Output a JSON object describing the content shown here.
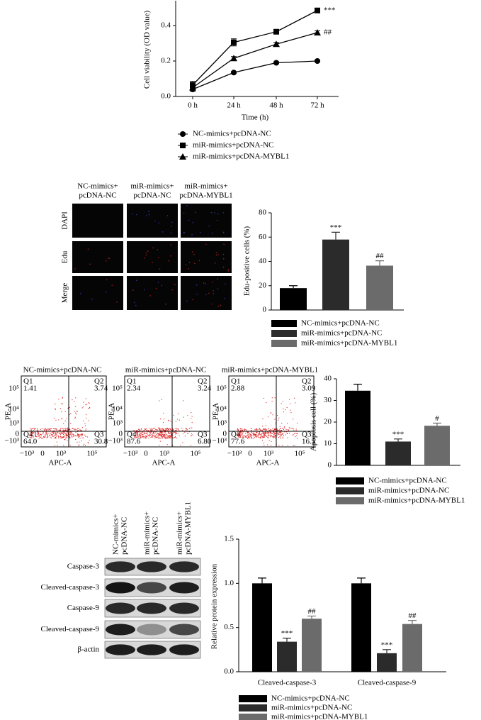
{
  "chart_data": [
    {
      "type": "line",
      "ylabel": "Cell viability (OD value)",
      "xlabel": "Time (h)",
      "categories": [
        "0 h",
        "24 h",
        "48 h",
        "72 h"
      ],
      "ylim": [
        0,
        0.54
      ],
      "yticks": [
        {
          "value": 0,
          "label": "0.0"
        },
        {
          "value": 0.2,
          "label": "0.2"
        },
        {
          "value": 0.4,
          "label": "0.4"
        }
      ],
      "series": [
        {
          "name": "NC-mimics+pcDNA-NC",
          "color": "#000000",
          "marker": "circle",
          "values": [
            0.04,
            0.135,
            0.19,
            0.2
          ],
          "errors": [
            0.01,
            0.005,
            0.005,
            0.005
          ]
        },
        {
          "name": "miR-mimics+pcDNA-NC",
          "color": "#000000",
          "marker": "square",
          "values": [
            0.065,
            0.305,
            0.365,
            0.485
          ],
          "errors": [
            0.02,
            0.02,
            0.01,
            0.01
          ],
          "annotation": "***"
        },
        {
          "name": "miR-mimics+pcDNA-MYBL1",
          "color": "#000000",
          "marker": "triangle",
          "values": [
            0.05,
            0.215,
            0.295,
            0.36
          ],
          "errors": [
            0.015,
            0.01,
            0.01,
            0.01
          ],
          "annotation": "##"
        }
      ]
    },
    {
      "type": "bar",
      "ylabel": "Edu-positive cells (%)",
      "categories": [
        null
      ],
      "ylim": [
        0,
        80
      ],
      "yticks": [
        0,
        20,
        40,
        60,
        80
      ],
      "series": [
        {
          "name": "NC-mimics+pcDNA-NC",
          "color": "#000000",
          "values": [
            18
          ],
          "errors": [
            2
          ]
        },
        {
          "name": "miR-mimics+pcDNA-NC",
          "color": "#2b2b2b",
          "values": [
            58
          ],
          "errors": [
            6
          ],
          "annotations": [
            "***"
          ]
        },
        {
          "name": "miR-mimics+pcDNA-MYBL1",
          "color": "#6b6b6b",
          "values": [
            36.5
          ],
          "errors": [
            4
          ],
          "annotations": [
            "##"
          ]
        }
      ]
    },
    {
      "type": "bar",
      "ylabel": "Apoptosis cell (%)",
      "categories": [
        null
      ],
      "ylim": [
        0,
        40
      ],
      "yticks": [
        0,
        10,
        20,
        30,
        40
      ],
      "series": [
        {
          "name": "NC-mimics+pcDNA-NC",
          "color": "#000000",
          "values": [
            34.5
          ],
          "errors": [
            3
          ]
        },
        {
          "name": "miR-mimics+pcDNA-NC",
          "color": "#2b2b2b",
          "values": [
            11
          ],
          "errors": [
            1.2
          ],
          "annotations": [
            "***"
          ]
        },
        {
          "name": "miR-mimics+pcDNA-MYBL1",
          "color": "#6b6b6b",
          "values": [
            18.3
          ],
          "errors": [
            1.2
          ],
          "annotations": [
            "#"
          ]
        }
      ]
    },
    {
      "type": "bar",
      "ylabel": "Relative protein expression",
      "categories": [
        "Cleaved-caspase-3",
        "Cleaved-caspase-9"
      ],
      "ylim": [
        0,
        1.5
      ],
      "yticks": [
        {
          "value": 0,
          "label": "0.0"
        },
        {
          "value": 0.5,
          "label": "0.5"
        },
        {
          "value": 1,
          "label": "1.0"
        },
        {
          "value": 1.5,
          "label": "1.5"
        }
      ],
      "series": [
        {
          "name": "NC-mimics+pcDNA-NC",
          "color": "#000000",
          "values": [
            1.0,
            1.0
          ],
          "errors": [
            0.06,
            0.06
          ]
        },
        {
          "name": "miR-mimics+pcDNA-NC",
          "color": "#2b2b2b",
          "values": [
            0.34,
            0.21
          ],
          "errors": [
            0.04,
            0.04
          ],
          "annotations": [
            "***",
            "***"
          ]
        },
        {
          "name": "miR-mimics+pcDNA-MYBL1",
          "color": "#6b6b6b",
          "values": [
            0.6,
            0.54
          ],
          "errors": [
            0.03,
            0.04
          ],
          "annotations": [
            "##",
            "##"
          ]
        }
      ]
    }
  ],
  "microscopy": {
    "columns": [
      [
        "NC-mimics+",
        "pcDNA-NC"
      ],
      [
        "miR-mimics+",
        "pcDNA-NC"
      ],
      [
        "miR-mimics+",
        "pcDNA-MYBL1"
      ]
    ],
    "rows": [
      "DAPI",
      "Edu",
      "Merge"
    ]
  },
  "flow_cytometry": {
    "xlabel": "APC-A",
    "ylabel": "PE-A",
    "xticks": [
      "−10³",
      "0",
      "10³",
      "10⁵"
    ],
    "yticks": [
      "10⁵",
      "10⁴",
      "10³",
      "0",
      "−10³"
    ],
    "plots": [
      {
        "title": "NC-mimics+pcDNA-NC",
        "quadrants": [
          {
            "name": "Q1",
            "value": "1.41"
          },
          {
            "name": "Q2",
            "value": "3.74"
          },
          {
            "name": "Q3",
            "value": "30.8"
          },
          {
            "name": "Q4",
            "value": "64.0"
          }
        ]
      },
      {
        "title": "miR-mimics+pcDNA-NC",
        "quadrants": [
          {
            "name": "Q1",
            "value": "2.34"
          },
          {
            "name": "Q2",
            "value": "3.24"
          },
          {
            "name": "Q3",
            "value": "6.80"
          },
          {
            "name": "Q4",
            "value": "87.6"
          }
        ]
      },
      {
        "title": "miR-mimics+pcDNA-MYBL1",
        "quadrants": [
          {
            "name": "Q1",
            "value": "2.88"
          },
          {
            "name": "Q2",
            "value": "3.09"
          },
          {
            "name": "Q3",
            "value": "16.5"
          },
          {
            "name": "Q4",
            "value": "77.6"
          }
        ]
      }
    ]
  },
  "western_blot": {
    "columns": [
      [
        "NC-mimics+",
        "pcDNA-NC"
      ],
      [
        "miR-mimics+",
        "pcDNA-NC"
      ],
      [
        "miR-mimics+",
        "pcDNA-MYBL1"
      ]
    ],
    "rows": [
      "Caspase-3",
      "Cleaved-caspase-3",
      "Caspase-9",
      "Cleaved-caspase-9",
      "β-actin"
    ]
  }
}
